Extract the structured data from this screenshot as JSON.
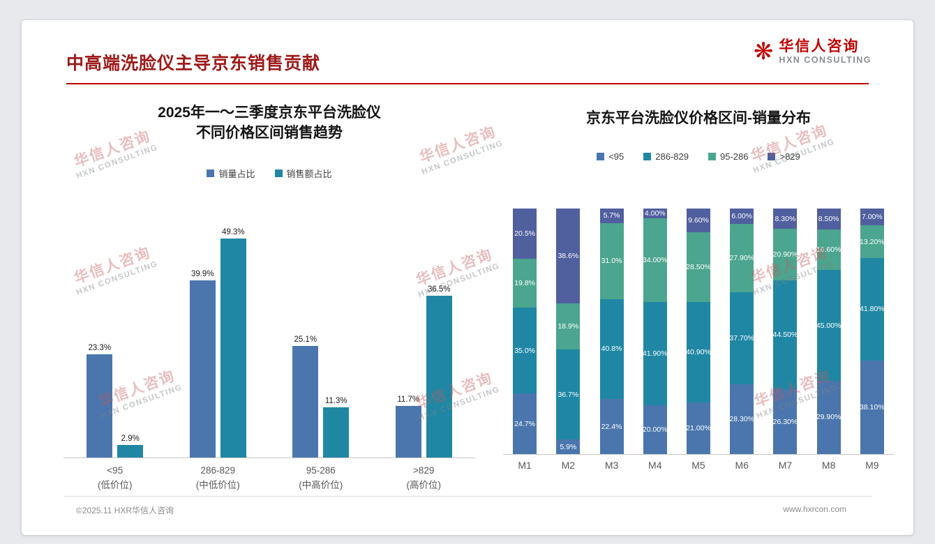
{
  "slide": {
    "title": "中高端洗脸仪主导京东销售贡献",
    "footer_left": "©2025.11 HXR华信人咨询",
    "footer_right": "www.hxrcon.com"
  },
  "logo": {
    "icon": "asterisk-mark",
    "name": "华信人咨询",
    "sub": "HXN CONSULTING"
  },
  "watermark": {
    "line1": "华信人咨询",
    "line2": "HXN CONSULTING"
  },
  "colors": {
    "title_red": "#9e1a1a",
    "accent_line": "#c00000",
    "series_blue": "#4a76ad",
    "series_teal": "#1f87a4",
    "series_green": "#4ca58e",
    "series_purple": "#505f9e",
    "axis_text": "#595959"
  },
  "chart_data": [
    {
      "type": "bar",
      "variant": "grouped",
      "title_line1": "2025年一～三季度京东平台洗脸仪",
      "title_line2": "不同价格区间销售趋势",
      "categories": [
        "<95",
        "286-829",
        "95-286",
        ">829"
      ],
      "category_sublabels": [
        "(低价位)",
        "(中低价位)",
        "(中高价位)",
        "(高价位)"
      ],
      "series": [
        {
          "name": "销量占比",
          "color": "#4a76ad",
          "values": [
            23.3,
            39.9,
            25.1,
            11.7
          ],
          "labels": [
            "23.3%",
            "39.9%",
            "25.1%",
            "11.7%"
          ]
        },
        {
          "name": "销售额占比",
          "color": "#1f87a4",
          "values": [
            2.9,
            49.3,
            11.3,
            36.5
          ],
          "labels": [
            "2.9%",
            "49.3%",
            "11.3%",
            "36.5%"
          ]
        }
      ],
      "xlabel": "",
      "ylabel": "",
      "ylim": [
        0,
        55
      ],
      "grid": false,
      "legend_position": "top"
    },
    {
      "type": "bar",
      "variant": "stacked-100",
      "title": "京东平台洗脸仪价格区间-销量分布",
      "categories": [
        "M1",
        "M2",
        "M3",
        "M4",
        "M5",
        "M6",
        "M7",
        "M8",
        "M9"
      ],
      "series": [
        {
          "name": "<95",
          "color": "#4a76ad",
          "values": [
            24.7,
            5.9,
            22.4,
            20.0,
            21.0,
            28.3,
            26.3,
            29.9,
            38.1
          ],
          "labels": [
            "24.7%",
            "5.9%",
            "22.4%",
            "20.00%",
            "21.00%",
            "28.30%",
            "26.30%",
            "29.90%",
            "38.10%"
          ]
        },
        {
          "name": "286-829",
          "color": "#1f87a4",
          "values": [
            35.0,
            36.7,
            40.8,
            41.9,
            40.9,
            37.7,
            44.5,
            45.0,
            41.8
          ],
          "labels": [
            "35.0%",
            "36.7%",
            "40.8%",
            "41.90%",
            "40.90%",
            "37.70%",
            "44.50%",
            "45.00%",
            "41.80%"
          ]
        },
        {
          "name": "95-286",
          "color": "#4ca58e",
          "values": [
            19.8,
            18.9,
            31.0,
            34.0,
            28.5,
            27.9,
            20.9,
            16.6,
            13.2
          ],
          "labels": [
            "19.8%",
            "18.9%",
            "31.0%",
            "34.00%",
            "28.50%",
            "27.90%",
            "20.90%",
            "16.60%",
            "13.20%"
          ]
        },
        {
          "name": ">829",
          "color": "#505f9e",
          "values": [
            20.5,
            38.6,
            5.7,
            4.0,
            9.6,
            6.0,
            8.3,
            8.5,
            7.0
          ],
          "labels": [
            "20.5%",
            "38.6%",
            "5.7%",
            "4.00%",
            "9.60%",
            "6.00%",
            "8.30%",
            "8.50%",
            "7.00%"
          ]
        }
      ],
      "xlabel": "",
      "ylabel": "",
      "ylim": [
        0,
        100
      ],
      "grid": false,
      "legend_position": "top"
    }
  ]
}
